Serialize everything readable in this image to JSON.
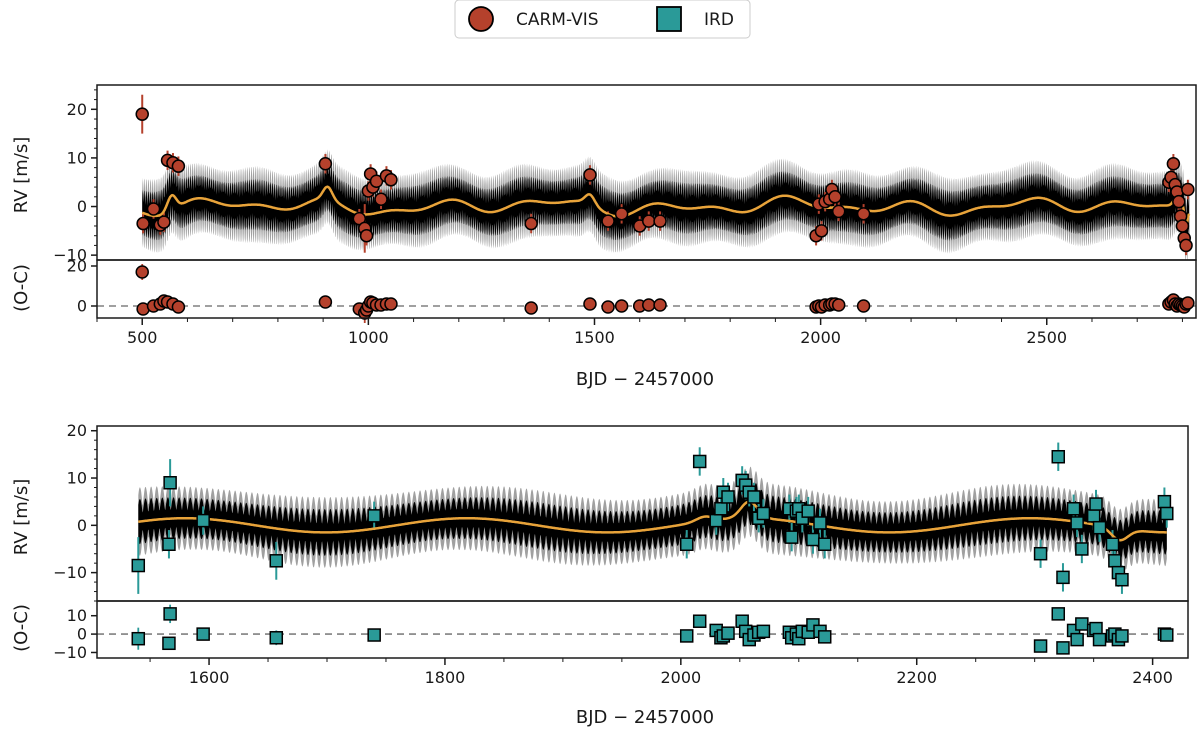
{
  "legend": {
    "entries": [
      {
        "label": "CARM-VIS",
        "marker": "circle",
        "color": "#b5412c"
      },
      {
        "label": "IRD",
        "marker": "square",
        "color": "#2a9a98"
      }
    ]
  },
  "colors": {
    "carm": "#b5412c",
    "ird": "#2a9a98",
    "model": "#e8a33a",
    "band_inner": "#000000",
    "band_outer": "#a0a0a0",
    "zero_line": "#808080"
  },
  "chart_data": [
    {
      "type": "scatter",
      "title": "",
      "instrument": "CARM-VIS",
      "xlabel": "BJD − 2457000",
      "ylabel": "RV [m/s]",
      "resid_label": "(O-C)",
      "xlim": [
        400,
        2830
      ],
      "ylim": [
        -11,
        25
      ],
      "resid_ylim": [
        -6,
        23
      ],
      "xticks": [
        "500",
        "1000",
        "1500",
        "2000",
        "2500"
      ],
      "yticks": [
        "−10",
        "0",
        "10",
        "20"
      ],
      "resid_yticks": [
        "0",
        "20"
      ],
      "grid": false,
      "series": [
        {
          "name": "CARM-VIS",
          "x": [
            500,
            502,
            525,
            540,
            548,
            556,
            568,
            580,
            905,
            980,
            992,
            996,
            1000,
            1005,
            1010,
            1018,
            1028,
            1040,
            1050,
            1360,
            1490,
            1530,
            1560,
            1600,
            1620,
            1645,
            1990,
            1996,
            2002,
            2010,
            2020,
            2025,
            2032,
            2040,
            2095,
            2770,
            2775,
            2780,
            2784,
            2788,
            2792,
            2796,
            2800,
            2804,
            2808,
            2812
          ],
          "y": [
            19,
            -3.5,
            -0.5,
            -3.8,
            -3.2,
            9.5,
            9.0,
            8.3,
            8.8,
            -2.5,
            -4.5,
            -6.0,
            3.2,
            6.7,
            4.0,
            5.2,
            1.5,
            6.3,
            5.5,
            -3.5,
            6.5,
            -3.0,
            -1.5,
            -4.0,
            -3.0,
            -3.0,
            -6.0,
            0.5,
            -5.0,
            1.0,
            1.5,
            3.5,
            2.0,
            -1.0,
            -1.5,
            5.0,
            6.0,
            8.8,
            4.5,
            3.0,
            1.0,
            -2.0,
            -4.0,
            -6.5,
            -8.0,
            3.5
          ],
          "yerr": [
            4,
            2,
            2,
            2,
            2,
            2,
            2,
            2,
            2,
            2,
            5,
            2,
            2,
            2,
            2,
            2,
            2,
            2,
            2,
            2,
            2,
            2,
            2,
            2,
            2,
            2,
            2,
            2,
            2,
            2,
            2,
            2,
            2,
            2,
            2,
            2,
            2,
            2,
            2,
            2,
            2,
            2,
            2,
            2,
            2,
            2
          ],
          "resid": [
            17,
            -1.5,
            0,
            1,
            2.5,
            2,
            1,
            -0.5,
            2,
            -1.5,
            -3.5,
            -2,
            0,
            2,
            1.5,
            0.5,
            0.5,
            1,
            1,
            -1,
            1,
            -0.5,
            0,
            0,
            0.5,
            0.5,
            -0.5,
            0,
            -0.5,
            0.5,
            0.5,
            1,
            1,
            0.5,
            0,
            1,
            2,
            3,
            1,
            0,
            1,
            0.5,
            0,
            -0.5,
            1,
            1.5
          ]
        }
      ],
      "model": {
        "x_start": 500,
        "x_end": 2815
      }
    },
    {
      "type": "scatter",
      "title": "",
      "instrument": "IRD",
      "xlabel": "BJD − 2457000",
      "ylabel": "RV [m/s]",
      "resid_label": "(O-C)",
      "xlim": [
        1505,
        2430
      ],
      "ylim": [
        -16,
        21
      ],
      "resid_ylim": [
        -13,
        18
      ],
      "xticks": [
        "1600",
        "1800",
        "2000",
        "2200",
        "2400"
      ],
      "yticks": [
        "−10",
        "0",
        "10",
        "20"
      ],
      "resid_yticks": [
        "−10",
        "0",
        "10"
      ],
      "grid": false,
      "series": [
        {
          "name": "IRD",
          "x": [
            1540,
            1566,
            1567,
            1595,
            1657,
            1740,
            2005,
            2016,
            2030,
            2034,
            2036,
            2040,
            2052,
            2055,
            2058,
            2062,
            2066,
            2070,
            2092,
            2094,
            2098,
            2100,
            2103,
            2108,
            2112,
            2118,
            2122,
            2305,
            2320,
            2324,
            2333,
            2336,
            2340,
            2350,
            2352,
            2355,
            2366,
            2368,
            2371,
            2374,
            2410,
            2412
          ],
          "y": [
            -8.5,
            -4.0,
            9.0,
            1.0,
            -7.5,
            2.0,
            -4.0,
            13.5,
            1.0,
            3.5,
            7.0,
            6.0,
            9.5,
            8.5,
            7.0,
            6.0,
            1.5,
            2.5,
            3.5,
            -2.5,
            3.0,
            3.5,
            1.5,
            3.0,
            -3.0,
            0.5,
            -4.0,
            -6.0,
            14.5,
            -11.0,
            3.5,
            0.5,
            -5.0,
            2.0,
            4.5,
            -0.5,
            -4.0,
            -7.5,
            -10.0,
            -11.5,
            5.0,
            2.5
          ],
          "yerr": [
            6,
            3,
            5,
            3,
            4,
            3,
            3,
            3,
            3,
            3,
            3,
            3,
            3,
            3,
            3,
            3,
            3,
            3,
            3,
            3,
            3,
            3,
            3,
            3,
            3,
            3,
            3,
            3,
            3,
            3,
            3,
            3,
            3,
            3,
            3,
            3,
            3,
            3,
            3,
            3,
            3,
            3
          ],
          "resid": [
            -2.5,
            -5.0,
            11.0,
            0.0,
            -2.0,
            -0.5,
            -1.0,
            7.0,
            2.0,
            -2.0,
            -1.0,
            0.5,
            7.0,
            1.5,
            -3.0,
            -0.5,
            1.0,
            1.5,
            1.0,
            -2.0,
            0.0,
            -2.5,
            1.5,
            1.0,
            5.0,
            1.5,
            -1.5,
            -6.5,
            11.0,
            -7.5,
            2.0,
            -3.0,
            5.5,
            2.0,
            3.0,
            -3.0,
            -1.0,
            0.0,
            -3.0,
            -1.0,
            0.0,
            -0.5
          ]
        }
      ],
      "model": {
        "x_start": 1540,
        "x_end": 2412
      }
    }
  ]
}
